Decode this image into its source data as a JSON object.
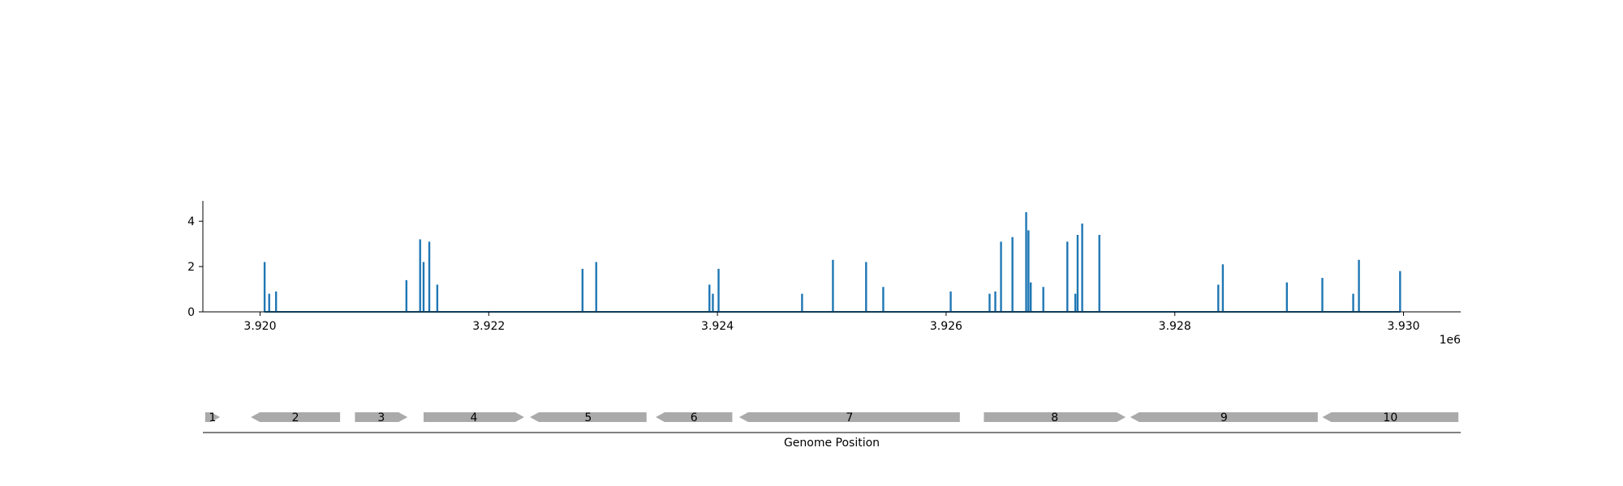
{
  "chart_data": [
    {
      "type": "bar",
      "series": [
        {
          "color": "#1f77b4",
          "points": [
            [
              3920040,
              2.2
            ],
            [
              3920080,
              0.8
            ],
            [
              3920140,
              0.9
            ],
            [
              3921280,
              1.4
            ],
            [
              3921400,
              3.2
            ],
            [
              3921430,
              2.2
            ],
            [
              3921480,
              3.1
            ],
            [
              3921550,
              1.2
            ],
            [
              3922820,
              1.9
            ],
            [
              3922940,
              2.2
            ],
            [
              3923930,
              1.2
            ],
            [
              3923960,
              0.8
            ],
            [
              3924010,
              1.9
            ],
            [
              3924740,
              0.8
            ],
            [
              3925010,
              2.3
            ],
            [
              3925300,
              2.2
            ],
            [
              3925450,
              1.1
            ],
            [
              3926040,
              0.9
            ],
            [
              3926380,
              0.8
            ],
            [
              3926430,
              0.9
            ],
            [
              3926480,
              3.1
            ],
            [
              3926580,
              3.3
            ],
            [
              3926700,
              4.4
            ],
            [
              3926720,
              3.6
            ],
            [
              3926740,
              1.3
            ],
            [
              3926850,
              1.1
            ],
            [
              3927060,
              3.1
            ],
            [
              3927130,
              0.8
            ],
            [
              3927150,
              3.4
            ],
            [
              3927190,
              3.9
            ],
            [
              3927340,
              3.4
            ],
            [
              3928380,
              1.2
            ],
            [
              3928420,
              2.1
            ],
            [
              3928980,
              1.3
            ],
            [
              3929290,
              1.5
            ],
            [
              3929560,
              0.8
            ],
            [
              3929610,
              2.3
            ],
            [
              3929970,
              1.8
            ]
          ]
        }
      ],
      "xlim": [
        3919500,
        3930500
      ],
      "ylim": [
        0,
        4.9
      ],
      "xticks": [
        3920000,
        3922000,
        3924000,
        3926000,
        3928000,
        3930000
      ],
      "xtick_labels": [
        "3.920",
        "3.922",
        "3.924",
        "3.926",
        "3.928",
        "3.930"
      ],
      "yticks": [
        0,
        2,
        4
      ],
      "ytick_labels": [
        "0",
        "2",
        "4"
      ],
      "x_offset_label": "1e6",
      "grid": false
    },
    {
      "type": "gene-track",
      "xlim": [
        3919500,
        3930500
      ],
      "genes": [
        {
          "label": "1",
          "start": 3919520,
          "end": 3919650,
          "strand": "+"
        },
        {
          "label": "2",
          "start": 3919920,
          "end": 3920700,
          "strand": "-"
        },
        {
          "label": "3",
          "start": 3920830,
          "end": 3921290,
          "strand": "+"
        },
        {
          "label": "4",
          "start": 3921430,
          "end": 3922310,
          "strand": "+"
        },
        {
          "label": "5",
          "start": 3922360,
          "end": 3923380,
          "strand": "-"
        },
        {
          "label": "6",
          "start": 3923460,
          "end": 3924130,
          "strand": "-"
        },
        {
          "label": "7",
          "start": 3924190,
          "end": 3926120,
          "strand": "-"
        },
        {
          "label": "8",
          "start": 3926330,
          "end": 3927570,
          "strand": "+"
        },
        {
          "label": "9",
          "start": 3927610,
          "end": 3929250,
          "strand": "-"
        },
        {
          "label": "10",
          "start": 3929290,
          "end": 3930480,
          "strand": "-"
        }
      ],
      "gene_color": "#aaaaaa",
      "xlabel": "Genome Position"
    }
  ]
}
